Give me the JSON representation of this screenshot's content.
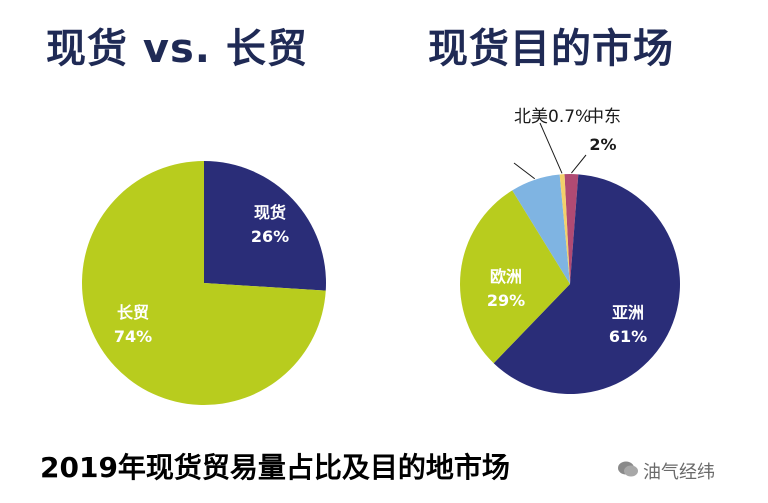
{
  "titles": {
    "left": "现货 vs. 长贸",
    "right": "现货目的市场"
  },
  "caption": "2019年现货贸易量占比及目的地市场",
  "watermark": "油气经纬",
  "colors": {
    "navy": "#2a2d78",
    "lime": "#b8cc1e",
    "lightblue": "#7fb4e2",
    "yellow": "#f2d06b",
    "rose": "#b04a73",
    "title": "#1f2a55"
  },
  "chart_data": [
    {
      "type": "pie",
      "title": "现货 vs. 长贸",
      "categories": [
        "现货",
        "长贸"
      ],
      "values": [
        26,
        74
      ],
      "value_labels": [
        "26%",
        "74%"
      ],
      "colors": [
        "#2a2d78",
        "#b8cc1e"
      ]
    },
    {
      "type": "pie",
      "title": "现货目的市场",
      "categories": [
        "中东",
        "亚洲",
        "欧洲",
        "",
        "北美"
      ],
      "values": [
        2,
        61,
        29,
        7.3,
        0.7
      ],
      "value_labels": [
        "2%",
        "61%",
        "29%",
        "",
        "0.7%"
      ],
      "colors": [
        "#b04a73",
        "#2a2d78",
        "#b8cc1e",
        "#7fb4e2",
        "#f2d06b"
      ]
    }
  ]
}
